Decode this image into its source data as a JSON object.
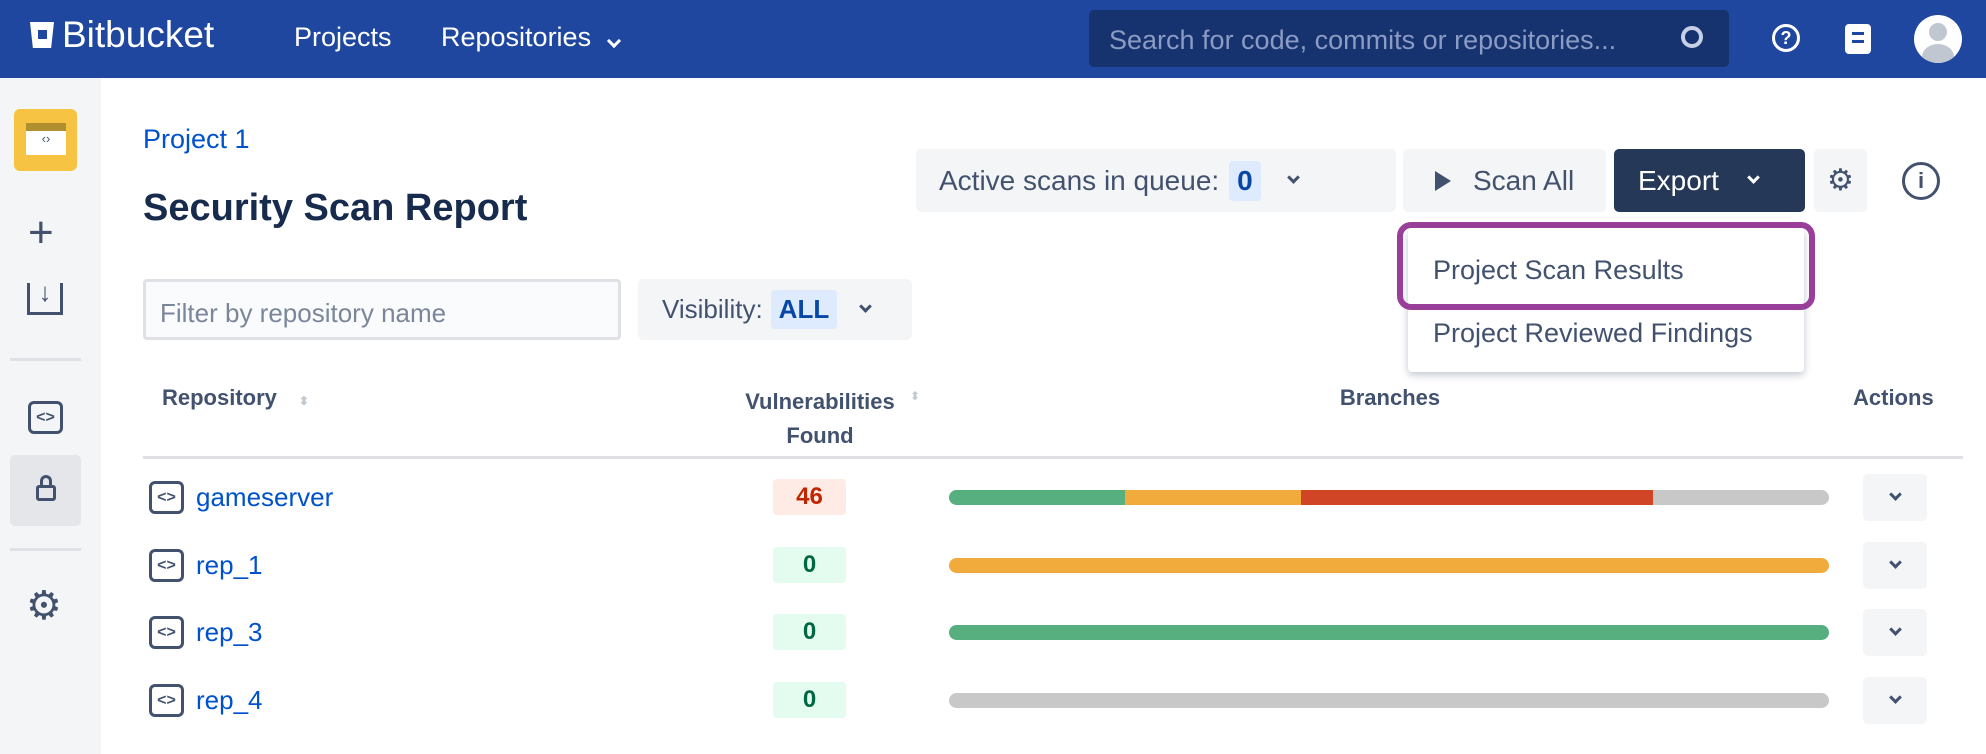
{
  "header": {
    "brand": "Bitbucket",
    "nav": [
      "Projects",
      "Repositories"
    ],
    "search_placeholder": "Search for code, commits or repositories..."
  },
  "breadcrumb": "Project 1",
  "page_title": "Security Scan Report",
  "toolbar": {
    "active_scans_label": "Active scans in queue:",
    "active_scans_count": "0",
    "scan_all": "Scan All",
    "export": "Export"
  },
  "export_menu": [
    "Project Scan Results",
    "Project Reviewed Findings"
  ],
  "filter": {
    "placeholder": "Filter by repository name",
    "visibility_label": "Visibility:",
    "visibility_value": "ALL"
  },
  "table": {
    "headers": {
      "repository": "Repository",
      "vuln1": "Vulnerabilities",
      "vuln2": "Found",
      "branches": "Branches",
      "actions": "Actions"
    },
    "rows": [
      {
        "name": "gameserver",
        "vulns": "46",
        "severity": "high",
        "branches": [
          {
            "color": "#57ae7e",
            "fraction": 0.2
          },
          {
            "color": "#f0ab3c",
            "fraction": 0.2
          },
          {
            "color": "#d04526",
            "fraction": 0.4
          },
          {
            "color": "#c8c8c8",
            "fraction": 0.2
          }
        ]
      },
      {
        "name": "rep_1",
        "vulns": "0",
        "severity": "none",
        "branches": [
          {
            "color": "#f0ab3c",
            "fraction": 1
          }
        ]
      },
      {
        "name": "rep_3",
        "vulns": "0",
        "severity": "none",
        "branches": [
          {
            "color": "#57ae7e",
            "fraction": 1
          }
        ]
      },
      {
        "name": "rep_4",
        "vulns": "0",
        "severity": "none",
        "branches": [
          {
            "color": "#c8c8c8",
            "fraction": 1
          }
        ]
      }
    ]
  },
  "colors": {
    "header": "#1f479f",
    "link": "#0052cc",
    "export_button": "#253858",
    "highlight": "#8e2a8e"
  }
}
